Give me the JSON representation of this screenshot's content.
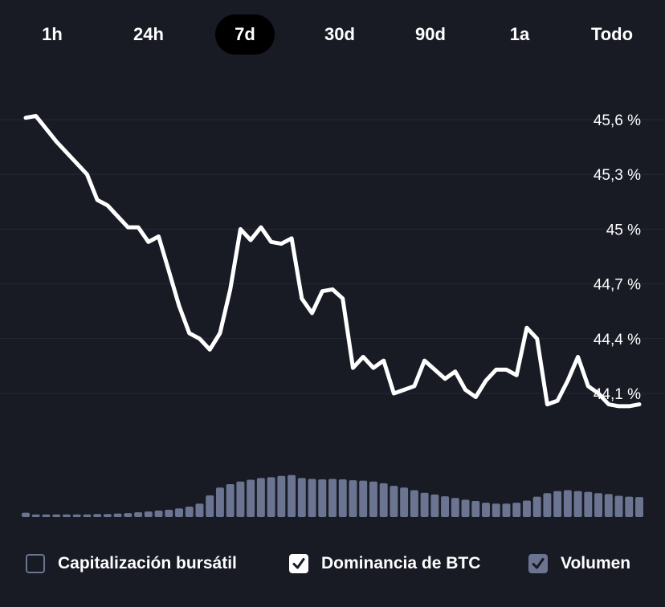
{
  "tabs": [
    {
      "label": "1h",
      "active": false
    },
    {
      "label": "24h",
      "active": false
    },
    {
      "label": "7d",
      "active": true
    },
    {
      "label": "30d",
      "active": false
    },
    {
      "label": "90d",
      "active": false
    },
    {
      "label": "1a",
      "active": false
    },
    {
      "label": "Todo",
      "active": false
    }
  ],
  "legend": [
    {
      "label": "Capitalización bursátil",
      "checked": false,
      "icon": "checkbox-unchecked-icon"
    },
    {
      "label": "Dominancia de BTC",
      "checked": true,
      "icon": "checkbox-checked-icon"
    },
    {
      "label": "Volumen",
      "checked": true,
      "icon": "checkbox-checked-icon"
    }
  ],
  "colors": {
    "background": "#181b24",
    "line": "#ffffff",
    "volume_bars": "#6b7591",
    "grid": "#252a36",
    "active_tab": "#000000"
  },
  "chart_data": {
    "type": "line",
    "title": "",
    "ylabel": "",
    "yunit": "%",
    "ylim": [
      43.9,
      45.7
    ],
    "yticks": [
      45.6,
      45.3,
      45.0,
      44.7,
      44.4,
      44.1
    ],
    "ytick_labels": [
      "45,6 %",
      "45,3 %",
      "45 %",
      "44,7 %",
      "44,4 %",
      "44,1 %"
    ],
    "grid": true,
    "series": [
      {
        "values": [
          45.61,
          45.62,
          45.55,
          45.48,
          45.42,
          45.36,
          45.3,
          45.16,
          45.13,
          45.07,
          45.01,
          45.01,
          44.93,
          44.96,
          44.77,
          44.58,
          44.43,
          44.4,
          44.34,
          44.43,
          44.67,
          45.0,
          44.94,
          45.01,
          44.93,
          44.92,
          44.95,
          44.62,
          44.54,
          44.66,
          44.67,
          44.62,
          44.24,
          44.3,
          44.24,
          44.28,
          44.1,
          44.12,
          44.14,
          44.28,
          44.23,
          44.18,
          44.22,
          44.12,
          44.08,
          44.17,
          44.23,
          44.23,
          44.2,
          44.46,
          44.4,
          44.04,
          44.06,
          44.17,
          44.3,
          44.14,
          44.1,
          44.04,
          44.03,
          44.03,
          44.04
        ]
      }
    ],
    "volume": {
      "values": [
        0.1,
        0.06,
        0.06,
        0.06,
        0.06,
        0.06,
        0.06,
        0.07,
        0.07,
        0.08,
        0.09,
        0.11,
        0.13,
        0.15,
        0.17,
        0.2,
        0.24,
        0.31,
        0.5,
        0.68,
        0.76,
        0.82,
        0.86,
        0.9,
        0.92,
        0.95,
        0.97,
        0.9,
        0.88,
        0.87,
        0.88,
        0.87,
        0.85,
        0.84,
        0.82,
        0.78,
        0.72,
        0.68,
        0.62,
        0.56,
        0.52,
        0.48,
        0.44,
        0.4,
        0.37,
        0.33,
        0.31,
        0.31,
        0.33,
        0.38,
        0.47,
        0.55,
        0.6,
        0.62,
        0.6,
        0.58,
        0.55,
        0.53,
        0.49,
        0.47,
        0.46
      ]
    }
  }
}
